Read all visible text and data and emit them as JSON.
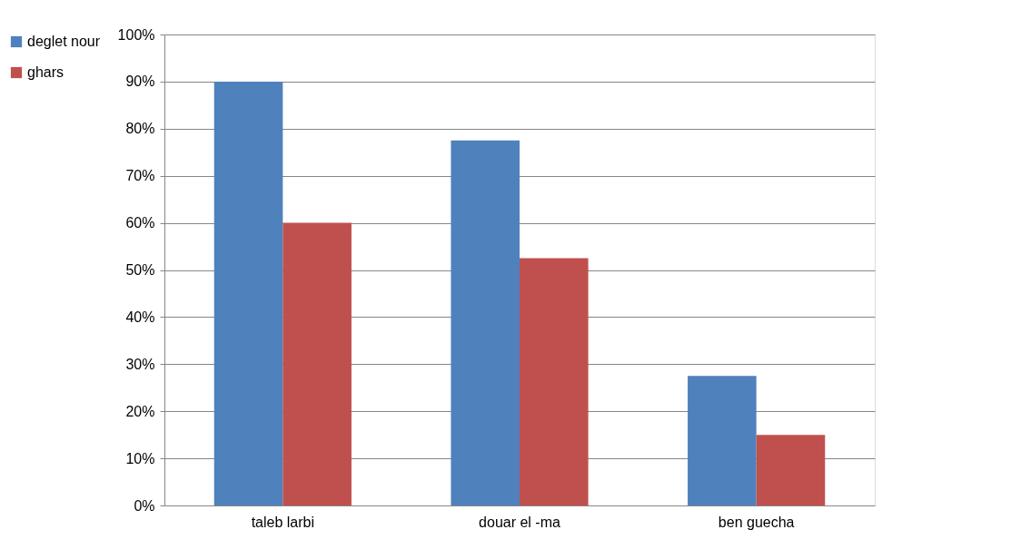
{
  "chart_data": {
    "type": "bar",
    "categories": [
      "taleb larbi",
      "douar el -ma",
      "ben guecha"
    ],
    "series": [
      {
        "name": "deglet nour",
        "color": "#4f81bd",
        "values": [
          90,
          77.5,
          27.5
        ]
      },
      {
        "name": "ghars",
        "color": "#c0504d",
        "values": [
          60,
          52.5,
          15
        ]
      }
    ],
    "ylim": [
      0,
      100
    ],
    "yticks": [
      {
        "value": 0,
        "label": "0%"
      },
      {
        "value": 10,
        "label": "10%"
      },
      {
        "value": 20,
        "label": "20%"
      },
      {
        "value": 30,
        "label": "30%"
      },
      {
        "value": 40,
        "label": "40%"
      },
      {
        "value": 50,
        "label": "50%"
      },
      {
        "value": 60,
        "label": "60%"
      },
      {
        "value": 70,
        "label": "70%"
      },
      {
        "value": 80,
        "label": "80%"
      },
      {
        "value": 90,
        "label": "90%"
      },
      {
        "value": 100,
        "label": "100%"
      }
    ],
    "grid": "y",
    "legend": "left"
  }
}
